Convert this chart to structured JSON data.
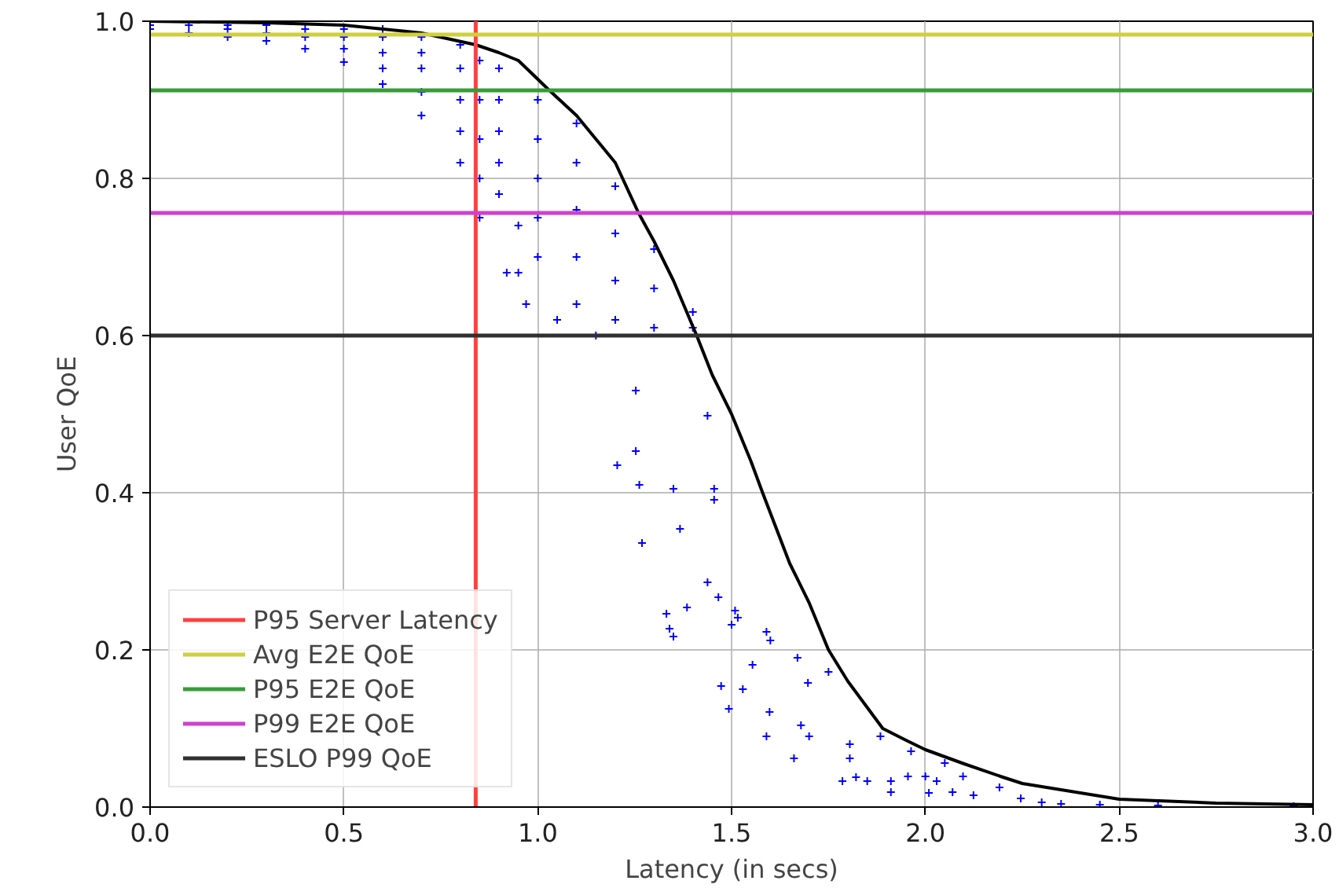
{
  "chart_data": {
    "type": "scatter",
    "xlabel": "Latency (in secs)",
    "ylabel": "User QoE",
    "xlim": [
      0,
      3
    ],
    "ylim": [
      0,
      1
    ],
    "xticks": [
      {
        "value": 0,
        "label": "0.0"
      },
      {
        "value": 0.5,
        "label": "0.5"
      },
      {
        "value": 1,
        "label": "1.0"
      },
      {
        "value": 1.5,
        "label": "1.5"
      },
      {
        "value": 2,
        "label": "2.0"
      },
      {
        "value": 2.5,
        "label": "2.5"
      },
      {
        "value": 3,
        "label": "3.0"
      }
    ],
    "yticks": [
      {
        "value": 0,
        "label": "0.0"
      },
      {
        "value": 0.2,
        "label": "0.2"
      },
      {
        "value": 0.4,
        "label": "0.4"
      },
      {
        "value": 0.6,
        "label": "0.6"
      },
      {
        "value": 0.8,
        "label": "0.8"
      },
      {
        "value": 1,
        "label": "1.0"
      }
    ],
    "grid": true,
    "legend": "bottom left",
    "marker": "cross",
    "series": [
      {
        "color": "#0000ff",
        "x": [
          0.0,
          0.0,
          0.1,
          0.1,
          0.2,
          0.2,
          0.2,
          0.3,
          0.3,
          0.3,
          0.4,
          0.4,
          0.4,
          0.5,
          0.5,
          0.5,
          0.5,
          0.6,
          0.6,
          0.6,
          0.6,
          0.6,
          0.7,
          0.7,
          0.7,
          0.7,
          0.7,
          0.8,
          0.8,
          0.8,
          0.8,
          0.8,
          0.85,
          0.85,
          0.85,
          0.85,
          0.85,
          0.9,
          0.9,
          0.9,
          0.9,
          0.9,
          0.92,
          0.95,
          0.95,
          0.97,
          1.0,
          1.0,
          1.0,
          1.0,
          1.0,
          1.05,
          1.1,
          1.1,
          1.1,
          1.1,
          1.1,
          1.15,
          1.2,
          1.2,
          1.2,
          1.2,
          1.3,
          1.3,
          1.3,
          1.4,
          1.4,
          1.253,
          1.438,
          1.253,
          1.205,
          1.262,
          1.35,
          1.455,
          1.455,
          1.367,
          1.269,
          1.438,
          1.466,
          1.385,
          1.332,
          1.34,
          1.35,
          1.509,
          1.516,
          1.5,
          1.59,
          1.6,
          1.67,
          1.554,
          1.75,
          1.697,
          1.473,
          1.529,
          1.493,
          1.598,
          1.679,
          1.7,
          1.59,
          1.884,
          1.805,
          1.963,
          1.661,
          1.805,
          1.955,
          1.786,
          1.821,
          1.85,
          1.911,
          1.911,
          2.0,
          2.029,
          2.009,
          2.05,
          2.097,
          2.07,
          2.124,
          2.191,
          2.246,
          2.3,
          2.35,
          2.45,
          2.6,
          2.95
        ],
        "values": [
          0.99,
          0.995,
          0.985,
          0.995,
          0.98,
          0.99,
          0.995,
          0.975,
          0.985,
          0.995,
          0.965,
          0.98,
          0.99,
          0.948,
          0.965,
          0.98,
          0.99,
          0.92,
          0.94,
          0.96,
          0.98,
          0.99,
          0.88,
          0.91,
          0.94,
          0.96,
          0.98,
          0.82,
          0.86,
          0.9,
          0.94,
          0.97,
          0.75,
          0.8,
          0.85,
          0.9,
          0.95,
          0.78,
          0.82,
          0.86,
          0.9,
          0.94,
          0.68,
          0.68,
          0.74,
          0.64,
          0.7,
          0.75,
          0.8,
          0.85,
          0.9,
          0.62,
          0.64,
          0.7,
          0.76,
          0.82,
          0.87,
          0.6,
          0.62,
          0.67,
          0.73,
          0.79,
          0.61,
          0.66,
          0.71,
          0.61,
          0.63,
          0.53,
          0.498,
          0.453,
          0.435,
          0.41,
          0.405,
          0.405,
          0.391,
          0.354,
          0.336,
          0.286,
          0.267,
          0.254,
          0.246,
          0.227,
          0.217,
          0.25,
          0.241,
          0.232,
          0.223,
          0.212,
          0.19,
          0.181,
          0.172,
          0.158,
          0.154,
          0.15,
          0.125,
          0.121,
          0.104,
          0.09,
          0.09,
          0.09,
          0.08,
          0.071,
          0.062,
          0.062,
          0.039,
          0.033,
          0.038,
          0.033,
          0.033,
          0.019,
          0.039,
          0.033,
          0.018,
          0.056,
          0.039,
          0.019,
          0.015,
          0.025,
          0.011,
          0.006,
          0.004,
          0.003,
          0.002,
          0.001
        ]
      },
      {
        "type": "line",
        "color": "#000000",
        "marker": "none",
        "x": [
          0,
          0.3,
          0.5,
          0.7,
          0.84,
          0.9,
          0.95,
          1.03,
          1.1,
          1.15,
          1.2,
          1.26,
          1.3,
          1.35,
          1.41,
          1.45,
          1.5,
          1.55,
          1.58,
          1.65,
          1.7,
          1.75,
          1.8,
          1.89,
          1.95,
          2.0,
          2.1,
          2.2,
          2.25,
          2.5,
          2.75,
          3.0
        ],
        "values": [
          1.0,
          0.998,
          0.995,
          0.985,
          0.97,
          0.96,
          0.95,
          0.912,
          0.88,
          0.85,
          0.82,
          0.756,
          0.72,
          0.67,
          0.6,
          0.55,
          0.5,
          0.44,
          0.4,
          0.31,
          0.26,
          0.2,
          0.16,
          0.1,
          0.085,
          0.073,
          0.055,
          0.038,
          0.03,
          0.01,
          0.005,
          0.003
        ]
      }
    ],
    "ref_lines": [
      {
        "axis": "x",
        "value": 0.84,
        "label": "P95 Server Latency",
        "color": "#ff4040"
      },
      {
        "axis": "y",
        "value": 0.983,
        "label": "Avg E2E QoE",
        "color": "#cfcf3f"
      },
      {
        "axis": "y",
        "value": 0.912,
        "label": "P95 E2E QoE",
        "color": "#3a9a3a"
      },
      {
        "axis": "y",
        "value": 0.756,
        "label": "P99 E2E QoE",
        "color": "#d040d0"
      },
      {
        "axis": "y",
        "value": 0.6,
        "label": "ESLO P99 QoE",
        "color": "#303030"
      }
    ]
  }
}
